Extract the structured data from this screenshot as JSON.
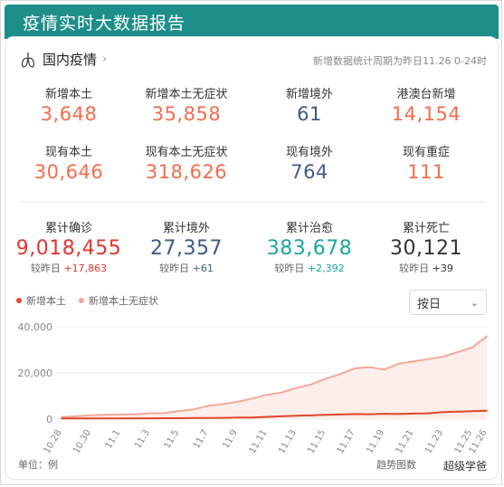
{
  "app_title": "疫情实时大数据报告",
  "section": {
    "title": "国内疫情",
    "period": "新增数据统计周期为昨日11.26 0-24时"
  },
  "stats_row1": [
    {
      "label": "新增本土",
      "value": "3,648"
    },
    {
      "label": "新增本土无症状",
      "value": "35,858"
    },
    {
      "label": "新增境外",
      "value": "61"
    },
    {
      "label": "港澳台新增",
      "value": "14,154"
    }
  ],
  "stats_row2": [
    {
      "label": "现有本土",
      "value": "30,646"
    },
    {
      "label": "现有本土无症状",
      "value": "318,626"
    },
    {
      "label": "现有境外",
      "value": "764"
    },
    {
      "label": "现有重症",
      "value": "111"
    }
  ],
  "cumulative": [
    {
      "label": "累计确诊",
      "value": "9,018,455",
      "delta_prefix": "较昨日",
      "delta": "+17,863"
    },
    {
      "label": "累计境外",
      "value": "27,357",
      "delta_prefix": "较昨日",
      "delta": "+61"
    },
    {
      "label": "累计治愈",
      "value": "383,678",
      "delta_prefix": "较昨日",
      "delta": "+2,392"
    },
    {
      "label": "累计死亡",
      "value": "30,121",
      "delta_prefix": "较昨日",
      "delta": "+39"
    }
  ],
  "chart_controls": {
    "select_value": "按日"
  },
  "footer": {
    "unit": "单位：例",
    "source": "趋势图数",
    "watermark": "超级学爸"
  },
  "colors": {
    "header_bg": "#1e8e8a",
    "red": "#f26c4f",
    "blue": "#3e5b80",
    "teal": "#1aa6a1",
    "deep_red": "#e0352e",
    "series_local": "#e0472a",
    "series_asym": "#f4a89a"
  },
  "chart_data": {
    "type": "line",
    "x": [
      "10.28",
      "10.29",
      "10.30",
      "10.31",
      "11.1",
      "11.2",
      "11.3",
      "11.4",
      "11.5",
      "11.6",
      "11.7",
      "11.8",
      "11.9",
      "11.10",
      "11.11",
      "11.12",
      "11.13",
      "11.14",
      "11.15",
      "11.16",
      "11.17",
      "11.18",
      "11.19",
      "11.20",
      "11.21",
      "11.22",
      "11.23",
      "11.24",
      "11.25",
      "11.26"
    ],
    "x_tick_labels": [
      "10.28",
      "10.30",
      "11.1",
      "11.3",
      "11.5",
      "11.7",
      "11.9",
      "11.11",
      "11.13",
      "11.15",
      "11.17",
      "11.19",
      "11.21",
      "11.23",
      "11.25",
      "11.26"
    ],
    "series": [
      {
        "name": "新增本土",
        "values": [
          300,
          320,
          320,
          330,
          330,
          360,
          350,
          380,
          400,
          480,
          500,
          560,
          650,
          700,
          1000,
          1200,
          1500,
          1600,
          1900,
          2000,
          2200,
          2100,
          2300,
          2200,
          2400,
          2500,
          3000,
          3200,
          3400,
          3648
        ]
      },
      {
        "name": "新增本土无症状",
        "values": [
          900,
          1200,
          1700,
          1900,
          2000,
          2100,
          2500,
          2600,
          3500,
          4200,
          5800,
          6500,
          7500,
          8900,
          10500,
          11500,
          13500,
          15000,
          17500,
          19500,
          22000,
          22500,
          21500,
          24000,
          25000,
          26000,
          27000,
          29000,
          31000,
          35858
        ]
      }
    ],
    "yticks": [
      0,
      20000,
      40000
    ],
    "ytick_labels": [
      "0",
      "20,000",
      "40,000"
    ],
    "ylim": [
      0,
      40000
    ],
    "grid": true,
    "legend": "top-left"
  }
}
